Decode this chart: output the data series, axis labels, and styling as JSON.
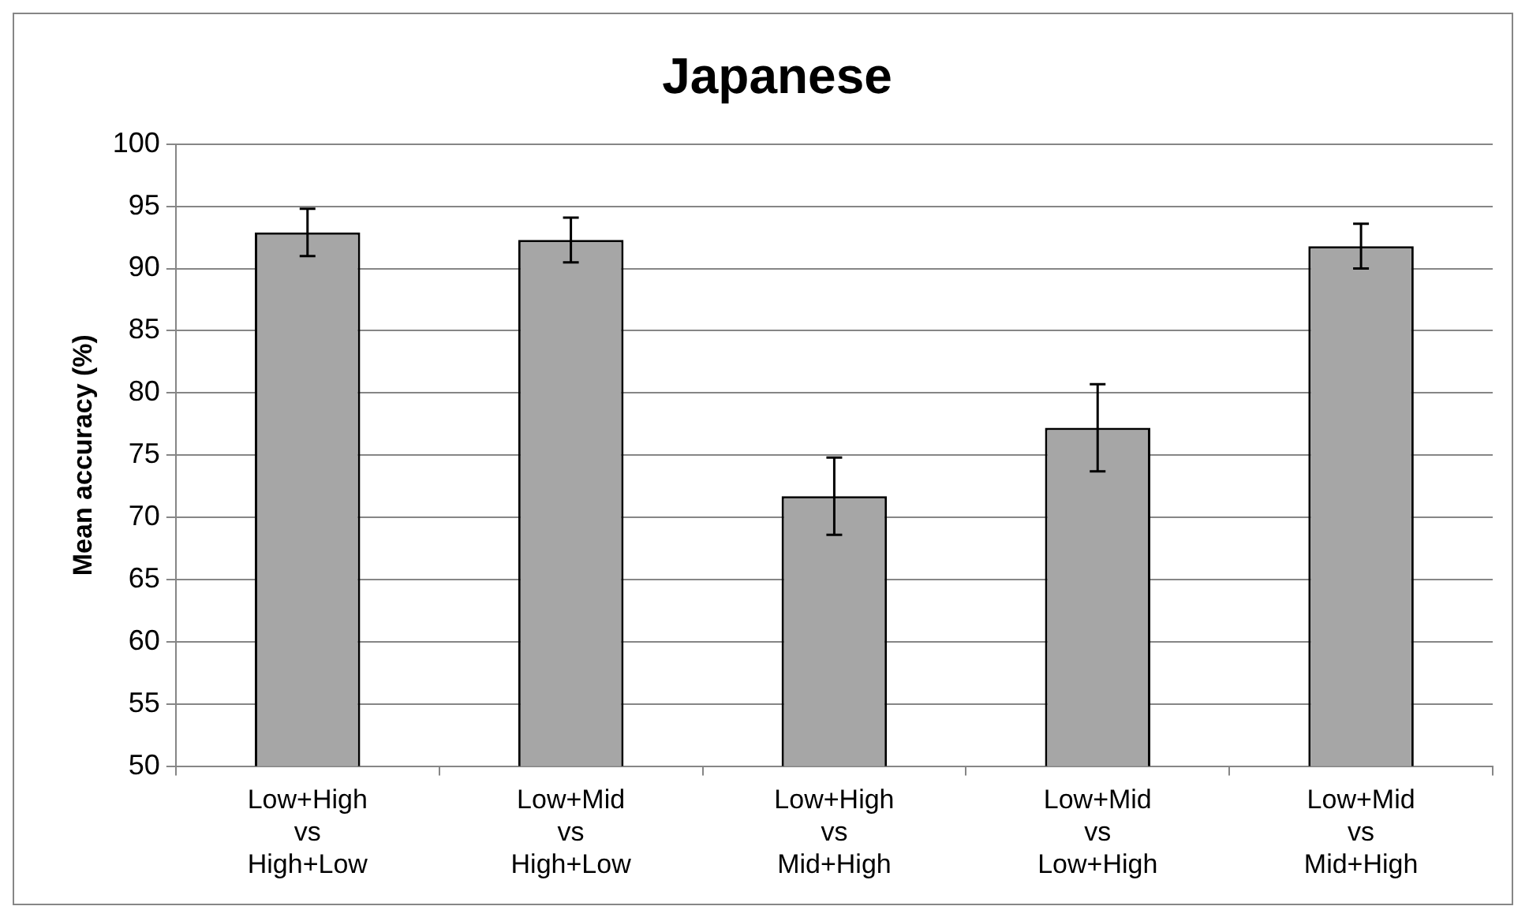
{
  "chart_data": {
    "type": "bar",
    "title": "Japanese",
    "ylabel": "Mean accuracy (%)",
    "categories": [
      "Low+High\nvs\nHigh+Low",
      "Low+Mid\nvs\nHigh+Low",
      "Low+High\nvs\nMid+High",
      "Low+Mid\nvs\nLow+High",
      "Low+Mid\nvs\nMid+High"
    ],
    "values": [
      92.9,
      92.3,
      71.7,
      77.2,
      91.8
    ],
    "errors": [
      1.9,
      1.8,
      3.1,
      3.5,
      1.8
    ],
    "color": "#a6a6a6",
    "ylim": [
      50,
      100
    ],
    "yticks": [
      50,
      55,
      60,
      65,
      70,
      75,
      80,
      85,
      90,
      95,
      100
    ],
    "grid": "y",
    "legend": false
  }
}
